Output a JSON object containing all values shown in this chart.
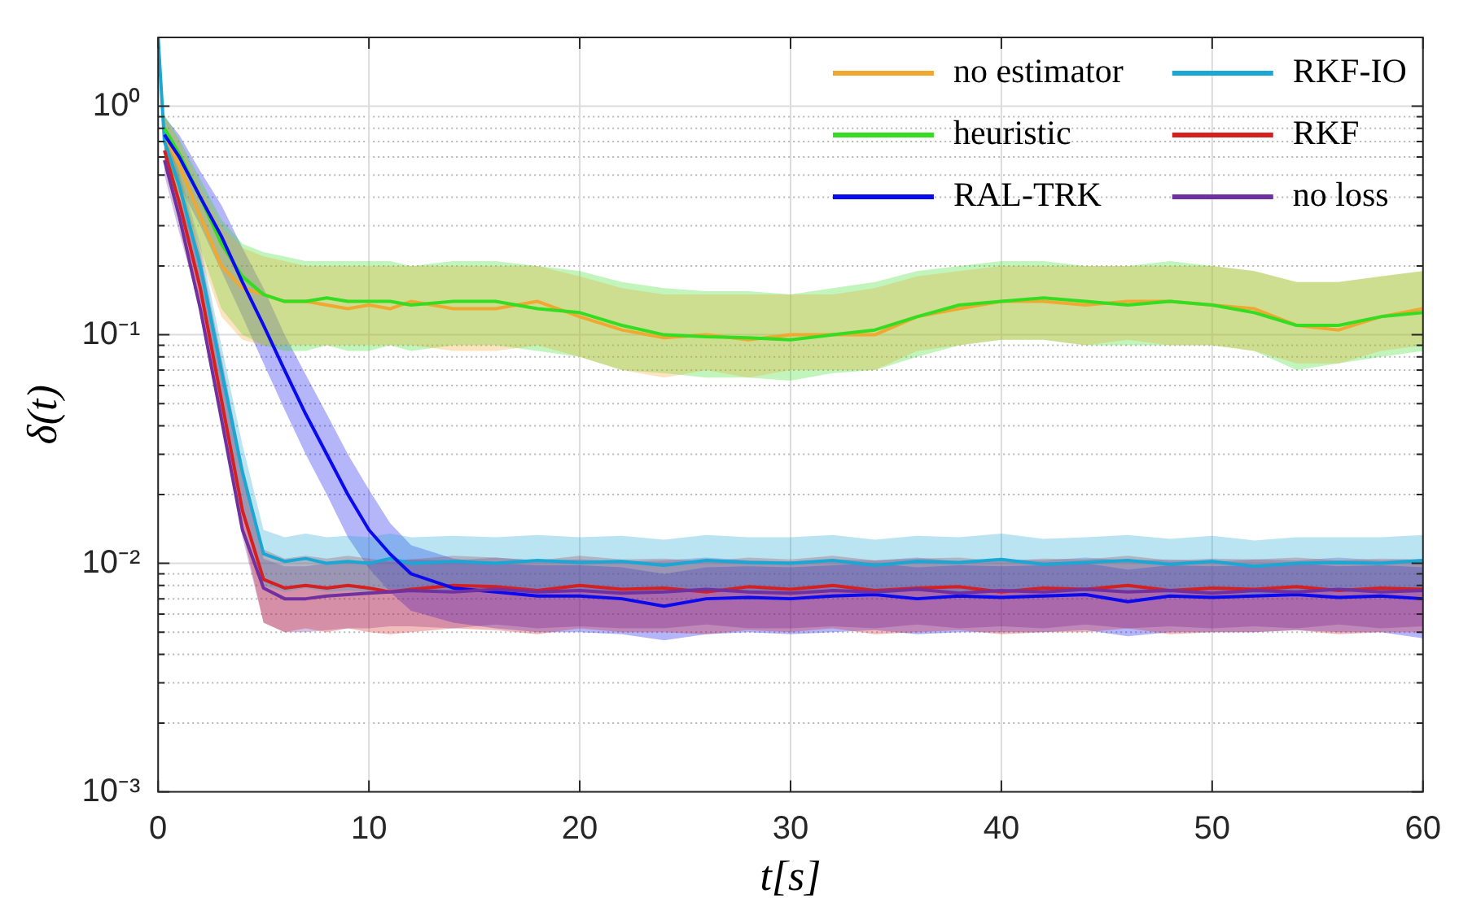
{
  "chart_data": {
    "type": "line",
    "xlabel": "t[s]",
    "ylabel": "δ(t)",
    "log": "y",
    "grid": true,
    "legend": "top right",
    "xlim": [
      0,
      60
    ],
    "xticks": [
      0,
      10,
      20,
      30,
      40,
      50,
      60
    ],
    "ylim": [
      0.001,
      2
    ],
    "yticks": [
      {
        "value": 0.001,
        "label": "10⁻³"
      },
      {
        "value": 0.002,
        "label": null
      },
      {
        "value": 0.003,
        "label": null
      },
      {
        "value": 0.004,
        "label": null
      },
      {
        "value": 0.005,
        "label": null
      },
      {
        "value": 0.006,
        "label": null
      },
      {
        "value": 0.007,
        "label": null
      },
      {
        "value": 0.008,
        "label": null
      },
      {
        "value": 0.009,
        "label": null
      },
      {
        "value": 0.01,
        "label": "10⁻²"
      },
      {
        "value": 0.02,
        "label": null
      },
      {
        "value": 0.03,
        "label": null
      },
      {
        "value": 0.04,
        "label": null
      },
      {
        "value": 0.05,
        "label": null
      },
      {
        "value": 0.06,
        "label": null
      },
      {
        "value": 0.07,
        "label": null
      },
      {
        "value": 0.08,
        "label": null
      },
      {
        "value": 0.09,
        "label": null
      },
      {
        "value": 0.1,
        "label": "10⁻¹"
      },
      {
        "value": 0.2,
        "label": null
      },
      {
        "value": 0.3,
        "label": null
      },
      {
        "value": 0.4,
        "label": null
      },
      {
        "value": 0.5,
        "label": null
      },
      {
        "value": 0.6,
        "label": null
      },
      {
        "value": 0.7,
        "label": null
      },
      {
        "value": 0.8,
        "label": null
      },
      {
        "value": 0.9,
        "label": null
      },
      {
        "value": 1,
        "label": "10⁰"
      }
    ],
    "x": [
      0,
      0.3,
      1,
      2,
      3,
      4,
      5,
      6,
      7,
      8,
      9,
      10,
      11,
      12,
      14,
      16,
      18,
      20,
      22,
      24,
      26,
      28,
      30,
      32,
      34,
      36,
      38,
      40,
      42,
      44,
      46,
      48,
      50,
      52,
      54,
      56,
      58,
      60
    ],
    "series": [
      {
        "name": "no estimator",
        "color": "#f0a830",
        "values": [
          null,
          0.75,
          0.55,
          0.33,
          0.2,
          0.16,
          0.15,
          0.14,
          0.14,
          0.135,
          0.13,
          0.135,
          0.13,
          0.14,
          0.13,
          0.13,
          0.14,
          0.12,
          0.105,
          0.097,
          0.1,
          0.095,
          0.1,
          0.1,
          0.1,
          0.12,
          0.13,
          0.14,
          0.14,
          0.135,
          0.14,
          0.14,
          0.135,
          0.13,
          0.11,
          0.105,
          0.12,
          0.13
        ],
        "lower": [
          null,
          0.6,
          0.4,
          0.22,
          0.12,
          0.095,
          0.09,
          0.09,
          0.09,
          0.09,
          0.09,
          0.09,
          0.09,
          0.09,
          0.085,
          0.085,
          0.09,
          0.08,
          0.07,
          0.065,
          0.07,
          0.065,
          0.07,
          0.07,
          0.07,
          0.085,
          0.09,
          0.095,
          0.095,
          0.09,
          0.095,
          0.09,
          0.09,
          0.085,
          0.075,
          0.075,
          0.085,
          0.09
        ],
        "upper": [
          null,
          0.9,
          0.7,
          0.45,
          0.3,
          0.24,
          0.22,
          0.21,
          0.2,
          0.2,
          0.2,
          0.2,
          0.2,
          0.2,
          0.2,
          0.2,
          0.2,
          0.18,
          0.16,
          0.15,
          0.15,
          0.15,
          0.15,
          0.15,
          0.16,
          0.18,
          0.19,
          0.2,
          0.2,
          0.2,
          0.2,
          0.2,
          0.2,
          0.19,
          0.17,
          0.17,
          0.18,
          0.19
        ]
      },
      {
        "name": "RKF-IO",
        "color": "#1aa7d4",
        "values": [
          2,
          0.7,
          0.45,
          0.2,
          0.07,
          0.025,
          0.011,
          0.0102,
          0.0105,
          0.01,
          0.0102,
          0.01,
          0.0105,
          0.01,
          0.0102,
          0.01,
          0.0103,
          0.0101,
          0.0102,
          0.0098,
          0.0103,
          0.0101,
          0.01,
          0.0103,
          0.0098,
          0.0102,
          0.0101,
          0.0104,
          0.0099,
          0.0101,
          0.0103,
          0.0099,
          0.0102,
          0.0097,
          0.01,
          0.0101,
          0.01,
          0.0103
        ],
        "lower": [
          2,
          0.6,
          0.38,
          0.16,
          0.055,
          0.018,
          0.008,
          0.0075,
          0.0078,
          0.0075,
          0.0076,
          0.0075,
          0.0078,
          0.0075,
          0.0076,
          0.0075,
          0.0077,
          0.0075,
          0.0076,
          0.0073,
          0.0077,
          0.0075,
          0.0075,
          0.0077,
          0.0073,
          0.0076,
          0.0075,
          0.0078,
          0.0074,
          0.0075,
          0.0077,
          0.0074,
          0.0076,
          0.0073,
          0.0075,
          0.0075,
          0.0075,
          0.0077
        ],
        "upper": [
          2,
          0.8,
          0.52,
          0.25,
          0.09,
          0.033,
          0.014,
          0.013,
          0.0135,
          0.013,
          0.0132,
          0.013,
          0.0135,
          0.013,
          0.0132,
          0.013,
          0.0133,
          0.013,
          0.0132,
          0.0127,
          0.0133,
          0.013,
          0.013,
          0.0133,
          0.0127,
          0.0132,
          0.013,
          0.0135,
          0.0128,
          0.013,
          0.0133,
          0.0128,
          0.0132,
          0.0126,
          0.013,
          0.013,
          0.013,
          0.0133
        ]
      },
      {
        "name": "heuristic",
        "color": "#33dd22",
        "values": [
          null,
          0.8,
          0.62,
          0.4,
          0.25,
          0.18,
          0.15,
          0.14,
          0.14,
          0.145,
          0.14,
          0.14,
          0.14,
          0.135,
          0.14,
          0.14,
          0.13,
          0.125,
          0.11,
          0.1,
          0.098,
          0.097,
          0.095,
          0.1,
          0.105,
          0.12,
          0.135,
          0.14,
          0.145,
          0.14,
          0.135,
          0.14,
          0.135,
          0.125,
          0.11,
          0.11,
          0.12,
          0.125
        ],
        "lower": [
          null,
          0.62,
          0.42,
          0.24,
          0.13,
          0.1,
          0.09,
          0.085,
          0.085,
          0.09,
          0.085,
          0.085,
          0.09,
          0.085,
          0.09,
          0.09,
          0.085,
          0.08,
          0.07,
          0.068,
          0.065,
          0.065,
          0.063,
          0.068,
          0.07,
          0.08,
          0.09,
          0.095,
          0.095,
          0.09,
          0.09,
          0.09,
          0.09,
          0.085,
          0.07,
          0.075,
          0.08,
          0.085
        ],
        "upper": [
          null,
          0.92,
          0.72,
          0.48,
          0.32,
          0.25,
          0.23,
          0.22,
          0.21,
          0.21,
          0.21,
          0.21,
          0.21,
          0.2,
          0.21,
          0.21,
          0.2,
          0.19,
          0.17,
          0.16,
          0.155,
          0.155,
          0.15,
          0.16,
          0.17,
          0.19,
          0.2,
          0.21,
          0.21,
          0.2,
          0.2,
          0.21,
          0.2,
          0.19,
          0.17,
          0.17,
          0.18,
          0.19
        ]
      },
      {
        "name": "RKF",
        "color": "#d62020",
        "values": [
          null,
          0.64,
          0.38,
          0.16,
          0.052,
          0.017,
          0.0085,
          0.0078,
          0.008,
          0.0078,
          0.008,
          0.0078,
          0.0075,
          0.0077,
          0.008,
          0.0079,
          0.0076,
          0.008,
          0.0077,
          0.0078,
          0.0075,
          0.0079,
          0.0077,
          0.008,
          0.0076,
          0.0078,
          0.0079,
          0.0075,
          0.0078,
          0.0077,
          0.008,
          0.0076,
          0.0078,
          0.0077,
          0.0079,
          0.0076,
          0.0078,
          0.0077
        ],
        "lower": [
          null,
          0.58,
          0.34,
          0.14,
          0.045,
          0.014,
          0.0055,
          0.005,
          0.0052,
          0.005,
          0.0052,
          0.005,
          0.0049,
          0.005,
          0.0052,
          0.0051,
          0.0049,
          0.0052,
          0.005,
          0.005,
          0.0049,
          0.0051,
          0.005,
          0.0052,
          0.0049,
          0.005,
          0.0051,
          0.0049,
          0.005,
          0.005,
          0.0052,
          0.0049,
          0.005,
          0.005,
          0.0051,
          0.0049,
          0.005,
          0.005
        ],
        "upper": [
          null,
          0.78,
          0.5,
          0.23,
          0.08,
          0.027,
          0.0115,
          0.0105,
          0.0108,
          0.0105,
          0.0108,
          0.0105,
          0.0102,
          0.0104,
          0.0108,
          0.0106,
          0.0103,
          0.0108,
          0.0104,
          0.0105,
          0.0102,
          0.0106,
          0.0104,
          0.0108,
          0.0103,
          0.0105,
          0.0106,
          0.0102,
          0.0105,
          0.0104,
          0.0108,
          0.0103,
          0.0105,
          0.0104,
          0.0106,
          0.0103,
          0.0105,
          0.0104
        ]
      },
      {
        "name": "RAL-TRK",
        "color": "#0a0aee",
        "values": [
          null,
          0.75,
          0.6,
          0.4,
          0.27,
          0.17,
          0.11,
          0.07,
          0.045,
          0.03,
          0.02,
          0.014,
          0.011,
          0.009,
          0.0078,
          0.0075,
          0.0072,
          0.0072,
          0.007,
          0.0065,
          0.007,
          0.0071,
          0.007,
          0.0072,
          0.0073,
          0.007,
          0.0072,
          0.0071,
          0.0072,
          0.0073,
          0.0068,
          0.0072,
          0.0071,
          0.0072,
          0.0073,
          0.0071,
          0.0072,
          0.007
        ],
        "lower": [
          null,
          0.6,
          0.45,
          0.3,
          0.19,
          0.12,
          0.075,
          0.047,
          0.03,
          0.02,
          0.013,
          0.0095,
          0.0075,
          0.0062,
          0.0055,
          0.0052,
          0.005,
          0.005,
          0.0049,
          0.0046,
          0.0049,
          0.005,
          0.0049,
          0.005,
          0.0051,
          0.0049,
          0.005,
          0.005,
          0.005,
          0.0051,
          0.0048,
          0.005,
          0.005,
          0.005,
          0.0051,
          0.005,
          0.005,
          0.0047
        ],
        "upper": [
          null,
          0.9,
          0.75,
          0.52,
          0.37,
          0.24,
          0.16,
          0.1,
          0.067,
          0.045,
          0.03,
          0.021,
          0.015,
          0.012,
          0.0105,
          0.01,
          0.0098,
          0.0098,
          0.0096,
          0.009,
          0.0096,
          0.0097,
          0.0096,
          0.0098,
          0.01,
          0.0096,
          0.0098,
          0.0097,
          0.0098,
          0.01,
          0.0094,
          0.0098,
          0.0097,
          0.0098,
          0.01,
          0.0097,
          0.0098,
          0.0096
        ]
      },
      {
        "name": "no loss",
        "color": "#7030a0",
        "values": [
          null,
          0.58,
          0.33,
          0.13,
          0.043,
          0.014,
          0.0078,
          0.007,
          0.007,
          0.0072,
          0.0073,
          0.0074,
          0.0075,
          0.0076,
          0.0075,
          0.0077,
          0.0075,
          0.0076,
          0.0074,
          0.0075,
          0.0077,
          0.0075,
          0.0074,
          0.0076,
          0.0075,
          0.0077,
          0.0074,
          0.0076,
          0.0075,
          0.0077,
          0.0075,
          0.0076,
          0.0074,
          0.0076,
          0.0075,
          0.0077,
          0.0075,
          0.0076
        ],
        "lower": [
          null,
          0.5,
          0.28,
          0.13,
          0.042,
          0.013,
          0.0055,
          0.005,
          0.005,
          0.0051,
          0.0052,
          0.0052,
          0.0053,
          0.0053,
          0.0052,
          0.0054,
          0.0052,
          0.0053,
          0.0052,
          0.0052,
          0.0054,
          0.0052,
          0.0052,
          0.0053,
          0.0052,
          0.0054,
          0.0052,
          0.0053,
          0.0052,
          0.0054,
          0.0052,
          0.0053,
          0.0052,
          0.0053,
          0.0052,
          0.0054,
          0.0052,
          0.0053
        ],
        "upper": [
          null,
          0.68,
          0.4,
          0.22,
          0.075,
          0.025,
          0.0105,
          0.0097,
          0.0097,
          0.01,
          0.0101,
          0.0102,
          0.0103,
          0.0104,
          0.0103,
          0.0106,
          0.0103,
          0.0104,
          0.0102,
          0.0103,
          0.0106,
          0.0103,
          0.0102,
          0.0104,
          0.0103,
          0.0106,
          0.0102,
          0.0104,
          0.0103,
          0.0106,
          0.0103,
          0.0104,
          0.0102,
          0.0104,
          0.0103,
          0.0106,
          0.0103,
          0.0104
        ]
      }
    ]
  }
}
